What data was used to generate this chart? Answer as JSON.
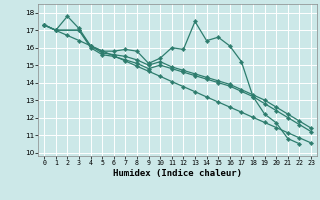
{
  "xlabel": "Humidex (Indice chaleur)",
  "bg_color": "#cce8e8",
  "grid_color": "#bbdddd",
  "line_color": "#2e7d6e",
  "xlim": [
    -0.5,
    23.5
  ],
  "ylim": [
    9.8,
    18.5
  ],
  "xticks": [
    0,
    1,
    2,
    3,
    4,
    5,
    6,
    7,
    8,
    9,
    10,
    11,
    12,
    13,
    14,
    15,
    16,
    17,
    18,
    19,
    20,
    21,
    22,
    23
  ],
  "yticks": [
    10,
    11,
    12,
    13,
    14,
    15,
    16,
    17,
    18
  ],
  "s1x": [
    0,
    1,
    2,
    3,
    4,
    5,
    6,
    7,
    8,
    9,
    10,
    11,
    12,
    13,
    14,
    15,
    16,
    17,
    18,
    19,
    20,
    21,
    22
  ],
  "s1y": [
    17.3,
    17.0,
    17.8,
    17.1,
    16.1,
    15.8,
    15.8,
    15.9,
    15.8,
    15.1,
    15.4,
    16.0,
    15.9,
    17.5,
    16.4,
    16.6,
    16.1,
    15.2,
    13.2,
    12.2,
    11.7,
    10.8,
    10.5
  ],
  "s2x": [
    0,
    1,
    3,
    4,
    5,
    6,
    7,
    8,
    9,
    10,
    11,
    12,
    13,
    14,
    15,
    16,
    17,
    18,
    19,
    20,
    21,
    22,
    23
  ],
  "s2y": [
    17.3,
    17.0,
    17.0,
    16.1,
    15.7,
    15.6,
    15.5,
    15.3,
    15.0,
    15.2,
    14.9,
    14.7,
    14.5,
    14.3,
    14.1,
    13.9,
    13.6,
    13.3,
    13.0,
    12.6,
    12.2,
    11.8,
    11.4
  ],
  "s3x": [
    0,
    1,
    3,
    4,
    5,
    6,
    7,
    8,
    9,
    10,
    11,
    12,
    13,
    14,
    15,
    16,
    17,
    18,
    19,
    20,
    21,
    22,
    23
  ],
  "s3y": [
    17.3,
    17.0,
    17.0,
    16.0,
    15.6,
    15.5,
    15.3,
    15.1,
    14.8,
    15.0,
    14.8,
    14.6,
    14.4,
    14.2,
    14.0,
    13.8,
    13.5,
    13.2,
    12.8,
    12.4,
    12.0,
    11.6,
    11.2
  ],
  "s4x": [
    0,
    1,
    2,
    3,
    4,
    5,
    6,
    7,
    8,
    9,
    10,
    11,
    12,
    13,
    14,
    15,
    16,
    17,
    18,
    19,
    20,
    21,
    22,
    23
  ],
  "s4y": [
    17.3,
    16.99,
    16.7,
    16.41,
    16.11,
    15.82,
    15.53,
    15.24,
    14.94,
    14.65,
    14.36,
    14.06,
    13.77,
    13.48,
    13.18,
    12.89,
    12.6,
    12.31,
    12.01,
    11.72,
    11.43,
    11.13,
    10.84,
    10.55
  ]
}
